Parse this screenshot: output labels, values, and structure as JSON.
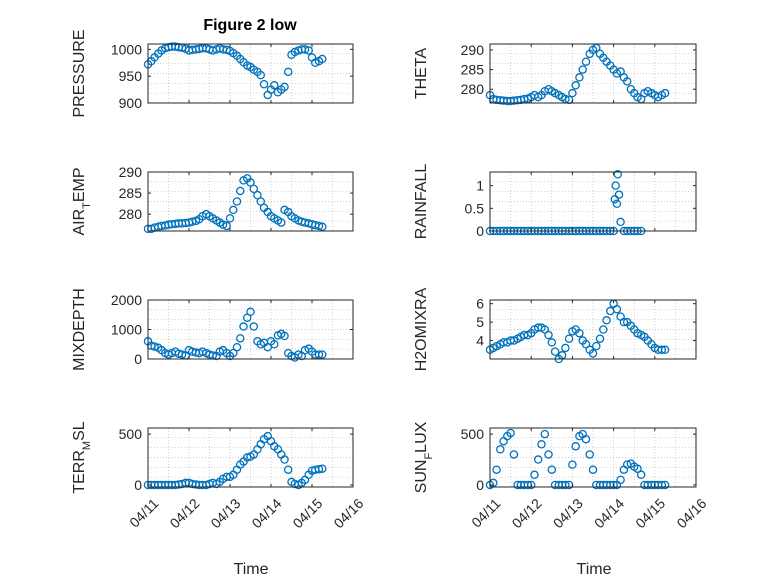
{
  "figure": {
    "title": "Figure 2 low",
    "xlabel": "Time",
    "marker_color": "#0072BD",
    "x_ticks": [
      "04/11",
      "04/12",
      "04/13",
      "04/14",
      "04/15",
      "04/16"
    ]
  },
  "chart_data": [
    {
      "type": "scatter",
      "ylabel": "PRESSURE",
      "ylim": [
        900,
        1010
      ],
      "yticks": [
        900,
        950,
        1000
      ],
      "grid": true,
      "x": [
        0,
        0.08,
        0.16,
        0.25,
        0.33,
        0.42,
        0.5,
        0.58,
        0.67,
        0.75,
        0.83,
        0.92,
        1.0,
        1.08,
        1.17,
        1.25,
        1.33,
        1.42,
        1.5,
        1.58,
        1.67,
        1.75,
        1.83,
        1.92,
        2.0,
        2.08,
        2.17,
        2.25,
        2.33,
        2.42,
        2.5,
        2.58,
        2.67,
        2.75,
        2.83,
        2.92,
        3.0,
        3.08,
        3.17,
        3.25,
        3.33,
        3.42,
        3.5,
        3.58,
        3.67,
        3.75,
        3.83,
        3.92,
        4.0,
        4.08,
        4.17,
        4.25
      ],
      "y": [
        972,
        978,
        985,
        992,
        998,
        1002,
        1004,
        1005,
        1005,
        1004,
        1003,
        1001,
        998,
        999,
        1000,
        1001,
        1002,
        1002,
        1000,
        998,
        1000,
        1002,
        1000,
        999,
        997,
        993,
        988,
        982,
        976,
        970,
        967,
        962,
        958,
        952,
        935,
        915,
        925,
        933,
        920,
        925,
        930,
        958,
        990,
        995,
        998,
        1000,
        1000,
        998,
        985,
        975,
        978,
        982
      ]
    },
    {
      "type": "scatter",
      "ylabel": "THETA",
      "ylim": [
        276.5,
        291.5
      ],
      "yticks": [
        280,
        285,
        290
      ],
      "grid": true,
      "x": [
        0,
        0.08,
        0.16,
        0.25,
        0.33,
        0.42,
        0.5,
        0.58,
        0.67,
        0.75,
        0.83,
        0.92,
        1.0,
        1.08,
        1.17,
        1.25,
        1.33,
        1.42,
        1.5,
        1.58,
        1.67,
        1.75,
        1.83,
        1.92,
        2.0,
        2.08,
        2.17,
        2.25,
        2.33,
        2.42,
        2.5,
        2.58,
        2.67,
        2.75,
        2.83,
        2.92,
        3.0,
        3.08,
        3.17,
        3.25,
        3.33,
        3.42,
        3.5,
        3.58,
        3.67,
        3.75,
        3.83,
        3.92,
        4.0,
        4.08,
        4.17,
        4.25
      ],
      "y": [
        278.5,
        277.5,
        277.3,
        277.2,
        277.1,
        277.0,
        277.0,
        277.1,
        277.2,
        277.3,
        277.5,
        277.6,
        278.0,
        278.5,
        278.0,
        278.5,
        279.5,
        280.0,
        279.5,
        279.0,
        278.5,
        278.0,
        277.5,
        277.3,
        279.0,
        281.0,
        283.0,
        285.0,
        287.0,
        289.0,
        290.0,
        290.5,
        289.0,
        288.0,
        287.0,
        286.0,
        285.0,
        284.0,
        284.5,
        283.0,
        282.0,
        280.0,
        279.0,
        278.0,
        277.5,
        279.0,
        279.5,
        279.0,
        278.5,
        278.0,
        278.5,
        279.0
      ]
    },
    {
      "type": "scatter",
      "ylabel": "AIR_TEMP",
      "ylim": [
        276,
        290
      ],
      "yticks": [
        280,
        285,
        290
      ],
      "grid": true,
      "x": [
        0,
        0.08,
        0.16,
        0.25,
        0.33,
        0.42,
        0.5,
        0.58,
        0.67,
        0.75,
        0.83,
        0.92,
        1.0,
        1.08,
        1.17,
        1.25,
        1.33,
        1.42,
        1.5,
        1.58,
        1.67,
        1.75,
        1.83,
        1.92,
        2.0,
        2.08,
        2.17,
        2.25,
        2.33,
        2.42,
        2.5,
        2.58,
        2.67,
        2.75,
        2.83,
        2.92,
        3.0,
        3.08,
        3.17,
        3.25,
        3.33,
        3.42,
        3.5,
        3.58,
        3.67,
        3.75,
        3.83,
        3.92,
        4.0,
        4.08,
        4.17,
        4.25
      ],
      "y": [
        276.5,
        276.5,
        276.8,
        277.0,
        277.2,
        277.3,
        277.5,
        277.6,
        277.7,
        277.8,
        277.8,
        277.9,
        278.0,
        278.2,
        278.4,
        278.8,
        279.5,
        280.0,
        279.5,
        279.0,
        278.5,
        278.0,
        277.5,
        277.2,
        279.0,
        281.0,
        283.0,
        285.5,
        288.0,
        288.5,
        287.5,
        286.0,
        284.5,
        283.0,
        281.5,
        280.5,
        279.5,
        279.0,
        278.5,
        278.0,
        281.0,
        280.5,
        279.5,
        279.0,
        278.5,
        278.2,
        278.0,
        277.8,
        277.6,
        277.4,
        277.2,
        277.0
      ]
    },
    {
      "type": "scatter",
      "ylabel": "RAINFALL",
      "ylim": [
        0,
        1.3
      ],
      "yticks": [
        0,
        0.5,
        1
      ],
      "grid": true,
      "x": [
        0,
        0.08,
        0.16,
        0.25,
        0.33,
        0.42,
        0.5,
        0.58,
        0.67,
        0.75,
        0.83,
        0.92,
        1.0,
        1.08,
        1.17,
        1.25,
        1.33,
        1.42,
        1.5,
        1.58,
        1.67,
        1.75,
        1.83,
        1.92,
        2.0,
        2.08,
        2.17,
        2.25,
        2.33,
        2.42,
        2.5,
        2.58,
        2.67,
        2.75,
        2.83,
        2.92,
        3.0,
        3.03,
        3.05,
        3.08,
        3.1,
        3.13,
        3.17,
        3.25,
        3.33,
        3.42,
        3.5,
        3.58,
        3.67
      ],
      "y": [
        0,
        0,
        0,
        0,
        0,
        0,
        0,
        0,
        0,
        0,
        0,
        0,
        0,
        0,
        0,
        0,
        0,
        0,
        0,
        0,
        0,
        0,
        0,
        0,
        0,
        0,
        0,
        0,
        0,
        0,
        0,
        0,
        0,
        0,
        0,
        0,
        0,
        0.7,
        1.0,
        0.6,
        1.25,
        0.8,
        0.2,
        0,
        0,
        0,
        0,
        0,
        0
      ]
    },
    {
      "type": "scatter",
      "ylabel": "MIXDEPTH",
      "ylim": [
        0,
        2000
      ],
      "yticks": [
        0,
        1000,
        2000
      ],
      "grid": true,
      "x": [
        0,
        0.08,
        0.16,
        0.25,
        0.33,
        0.42,
        0.5,
        0.58,
        0.67,
        0.75,
        0.83,
        0.92,
        1.0,
        1.08,
        1.17,
        1.25,
        1.33,
        1.42,
        1.5,
        1.58,
        1.67,
        1.75,
        1.83,
        1.92,
        2.0,
        2.08,
        2.17,
        2.25,
        2.33,
        2.42,
        2.5,
        2.58,
        2.67,
        2.75,
        2.83,
        2.92,
        3.0,
        3.08,
        3.17,
        3.25,
        3.33,
        3.42,
        3.5,
        3.58,
        3.67,
        3.75,
        3.83,
        3.92,
        4.0,
        4.08,
        4.17,
        4.25
      ],
      "y": [
        600,
        450,
        420,
        380,
        300,
        200,
        150,
        200,
        250,
        180,
        150,
        120,
        300,
        250,
        220,
        200,
        250,
        200,
        150,
        120,
        100,
        250,
        300,
        200,
        100,
        200,
        400,
        700,
        1100,
        1400,
        1600,
        1100,
        600,
        500,
        550,
        400,
        600,
        500,
        800,
        850,
        780,
        200,
        100,
        50,
        150,
        100,
        300,
        350,
        250,
        150,
        150,
        150
      ]
    },
    {
      "type": "scatter",
      "ylabel": "H2OMIXRA",
      "ylim": [
        3,
        6.2
      ],
      "yticks": [
        4,
        5,
        6
      ],
      "grid": true,
      "x": [
        0,
        0.08,
        0.16,
        0.25,
        0.33,
        0.42,
        0.5,
        0.58,
        0.67,
        0.75,
        0.83,
        0.92,
        1.0,
        1.08,
        1.17,
        1.25,
        1.33,
        1.42,
        1.5,
        1.58,
        1.67,
        1.75,
        1.83,
        1.92,
        2.0,
        2.08,
        2.17,
        2.25,
        2.33,
        2.42,
        2.5,
        2.58,
        2.67,
        2.75,
        2.83,
        2.92,
        3.0,
        3.08,
        3.17,
        3.25,
        3.33,
        3.42,
        3.5,
        3.58,
        3.67,
        3.75,
        3.83,
        3.92,
        4.0,
        4.08,
        4.17,
        4.25
      ],
      "y": [
        3.5,
        3.6,
        3.7,
        3.8,
        3.9,
        3.9,
        4.0,
        4.0,
        4.1,
        4.2,
        4.3,
        4.3,
        4.4,
        4.6,
        4.7,
        4.7,
        4.6,
        4.3,
        3.9,
        3.4,
        3.0,
        3.2,
        3.6,
        4.1,
        4.5,
        4.6,
        4.4,
        4.0,
        3.8,
        3.5,
        3.3,
        3.7,
        4.1,
        4.6,
        5.1,
        5.6,
        6.0,
        5.7,
        5.3,
        5.0,
        5.0,
        4.8,
        4.6,
        4.4,
        4.3,
        4.2,
        4.0,
        3.8,
        3.6,
        3.5,
        3.5,
        3.5
      ]
    },
    {
      "type": "scatter",
      "ylabel": "TERR_MSL",
      "ylim": [
        -20,
        560
      ],
      "yticks": [
        0,
        500
      ],
      "grid": true,
      "x": [
        0,
        0.08,
        0.16,
        0.25,
        0.33,
        0.42,
        0.5,
        0.58,
        0.67,
        0.75,
        0.83,
        0.92,
        1.0,
        1.08,
        1.17,
        1.25,
        1.33,
        1.42,
        1.5,
        1.58,
        1.67,
        1.75,
        1.83,
        1.92,
        2.0,
        2.08,
        2.17,
        2.25,
        2.33,
        2.42,
        2.5,
        2.58,
        2.67,
        2.75,
        2.83,
        2.92,
        3.0,
        3.08,
        3.17,
        3.25,
        3.33,
        3.42,
        3.5,
        3.58,
        3.67,
        3.75,
        3.83,
        3.92,
        4.0,
        4.08,
        4.17,
        4.25
      ],
      "y": [
        0,
        0,
        0,
        0,
        0,
        0,
        0,
        0,
        0,
        5,
        10,
        20,
        20,
        10,
        5,
        0,
        0,
        0,
        10,
        20,
        10,
        30,
        60,
        80,
        80,
        100,
        150,
        200,
        230,
        270,
        280,
        300,
        350,
        400,
        450,
        480,
        430,
        380,
        350,
        300,
        250,
        150,
        30,
        10,
        0,
        20,
        50,
        100,
        140,
        150,
        155,
        160
      ]
    },
    {
      "type": "scatter",
      "ylabel": "SUN_FLUX",
      "ylim": [
        -20,
        560
      ],
      "yticks": [
        0,
        500
      ],
      "grid": true,
      "x": [
        0,
        0.08,
        0.16,
        0.25,
        0.33,
        0.42,
        0.5,
        0.58,
        0.67,
        0.75,
        0.83,
        0.92,
        1.0,
        1.08,
        1.17,
        1.25,
        1.33,
        1.42,
        1.5,
        1.58,
        1.67,
        1.75,
        1.83,
        1.92,
        2.0,
        2.08,
        2.17,
        2.25,
        2.33,
        2.42,
        2.5,
        2.58,
        2.67,
        2.75,
        2.83,
        2.92,
        3.0,
        3.08,
        3.17,
        3.25,
        3.33,
        3.42,
        3.5,
        3.58,
        3.67,
        3.75,
        3.83,
        3.92,
        4.0,
        4.08,
        4.17,
        4.25
      ],
      "y": [
        0,
        20,
        150,
        350,
        430,
        480,
        510,
        300,
        0,
        0,
        0,
        0,
        0,
        100,
        250,
        400,
        500,
        300,
        150,
        0,
        0,
        0,
        0,
        0,
        200,
        380,
        480,
        500,
        450,
        300,
        150,
        0,
        0,
        0,
        0,
        0,
        0,
        0,
        50,
        150,
        200,
        210,
        180,
        160,
        100,
        0,
        0,
        0,
        0,
        0,
        0,
        0
      ]
    }
  ]
}
